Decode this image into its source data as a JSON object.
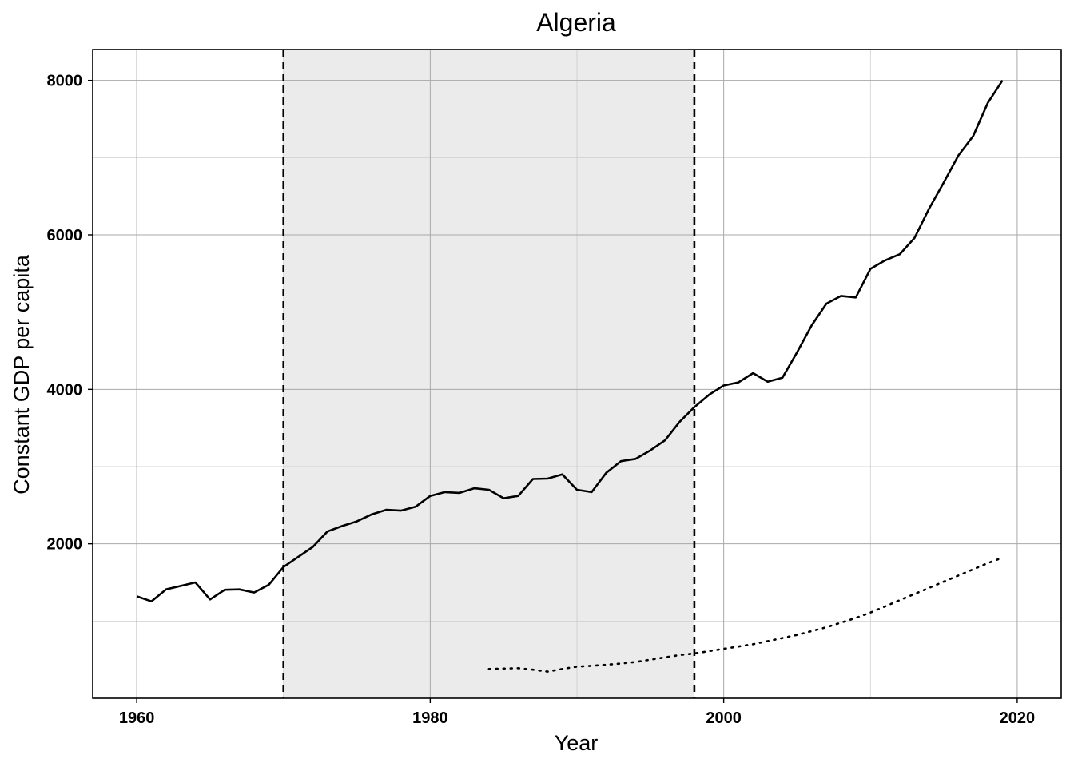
{
  "chart_data": {
    "type": "line",
    "title": "Algeria",
    "xlabel": "Year",
    "ylabel": "Constant GDP per capita",
    "xlim": [
      1957,
      2023
    ],
    "ylim": [
      0,
      8400
    ],
    "x_ticks": [
      1960,
      1980,
      2000,
      2020
    ],
    "y_ticks": [
      2000,
      4000,
      6000,
      8000
    ],
    "x_minor_grid": [
      1970,
      1990,
      2010
    ],
    "y_minor_grid": [
      1000,
      3000,
      5000,
      7000
    ],
    "grid": true,
    "legend": "none",
    "shaded_region": {
      "x_start": 1970,
      "x_end": 1998,
      "color": "#ebebeb"
    },
    "vertical_lines": [
      1970,
      1998
    ],
    "series": [
      {
        "style": "solid",
        "color": "#000000",
        "points": [
          [
            1960,
            1320
          ],
          [
            1961,
            1255
          ],
          [
            1962,
            1410
          ],
          [
            1963,
            1455
          ],
          [
            1964,
            1500
          ],
          [
            1965,
            1280
          ],
          [
            1966,
            1405
          ],
          [
            1967,
            1410
          ],
          [
            1968,
            1370
          ],
          [
            1969,
            1470
          ],
          [
            1970,
            1700
          ],
          [
            1971,
            1830
          ],
          [
            1972,
            1960
          ],
          [
            1973,
            2160
          ],
          [
            1974,
            2230
          ],
          [
            1975,
            2290
          ],
          [
            1976,
            2380
          ],
          [
            1977,
            2440
          ],
          [
            1978,
            2430
          ],
          [
            1979,
            2480
          ],
          [
            1980,
            2620
          ],
          [
            1981,
            2670
          ],
          [
            1982,
            2660
          ],
          [
            1983,
            2720
          ],
          [
            1984,
            2700
          ],
          [
            1985,
            2590
          ],
          [
            1986,
            2620
          ],
          [
            1987,
            2840
          ],
          [
            1988,
            2845
          ],
          [
            1989,
            2900
          ],
          [
            1990,
            2700
          ],
          [
            1991,
            2670
          ],
          [
            1992,
            2920
          ],
          [
            1993,
            3070
          ],
          [
            1994,
            3100
          ],
          [
            1995,
            3210
          ],
          [
            1996,
            3340
          ],
          [
            1997,
            3580
          ],
          [
            1998,
            3770
          ],
          [
            1999,
            3930
          ],
          [
            2000,
            4050
          ],
          [
            2001,
            4090
          ],
          [
            2002,
            4210
          ],
          [
            2003,
            4100
          ],
          [
            2004,
            4150
          ],
          [
            2005,
            4480
          ],
          [
            2006,
            4830
          ],
          [
            2007,
            5110
          ],
          [
            2008,
            5210
          ],
          [
            2009,
            5190
          ],
          [
            2010,
            5560
          ],
          [
            2011,
            5670
          ],
          [
            2012,
            5750
          ],
          [
            2013,
            5960
          ],
          [
            2014,
            6340
          ],
          [
            2015,
            6680
          ],
          [
            2016,
            7030
          ],
          [
            2017,
            7280
          ],
          [
            2018,
            7710
          ],
          [
            2019,
            8000
          ]
        ]
      },
      {
        "style": "dotted",
        "color": "#000000",
        "points": [
          [
            1984,
            380
          ],
          [
            1985,
            385
          ],
          [
            1986,
            390
          ],
          [
            1987,
            370
          ],
          [
            1988,
            345
          ],
          [
            1989,
            380
          ],
          [
            1990,
            410
          ],
          [
            1991,
            420
          ],
          [
            1992,
            435
          ],
          [
            1993,
            450
          ],
          [
            1994,
            470
          ],
          [
            1995,
            500
          ],
          [
            1996,
            530
          ],
          [
            1997,
            560
          ],
          [
            1998,
            580
          ],
          [
            1999,
            610
          ],
          [
            2000,
            640
          ],
          [
            2001,
            670
          ],
          [
            2002,
            700
          ],
          [
            2003,
            740
          ],
          [
            2004,
            780
          ],
          [
            2005,
            820
          ],
          [
            2006,
            870
          ],
          [
            2007,
            920
          ],
          [
            2008,
            980
          ],
          [
            2009,
            1040
          ],
          [
            2010,
            1110
          ],
          [
            2011,
            1190
          ],
          [
            2012,
            1270
          ],
          [
            2013,
            1350
          ],
          [
            2014,
            1430
          ],
          [
            2015,
            1510
          ],
          [
            2016,
            1590
          ],
          [
            2017,
            1670
          ],
          [
            2018,
            1750
          ],
          [
            2019,
            1820
          ]
        ]
      }
    ]
  }
}
